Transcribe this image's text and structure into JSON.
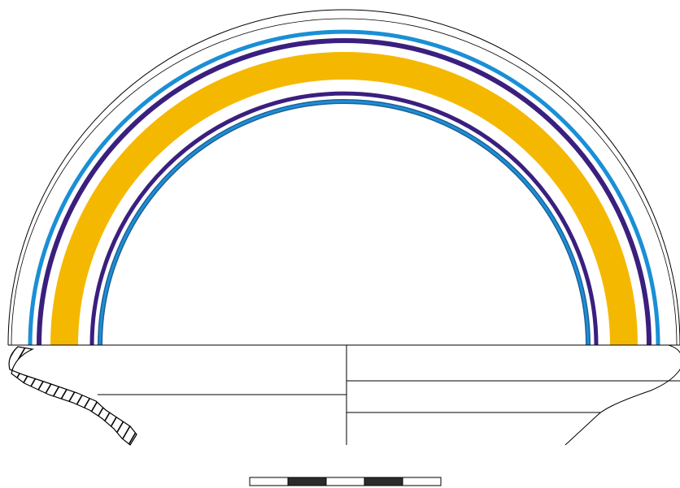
{
  "colors": {
    "outline": "#000000",
    "band_light_blue": "#1a8fd6",
    "band_purple": "#3a1f7e",
    "band_yellow": "#f5b800",
    "band_dark_blue": "#1f5f95",
    "scale_dark": "#2b2b2b",
    "scale_light": "#ffffff"
  },
  "drawing": {
    "subject": "vessel-profile-with-painted-bands",
    "bands": [
      "light-blue",
      "purple",
      "yellow",
      "purple",
      "light-blue"
    ],
    "section_hatch": "diagonal",
    "scale_bar_segments": 5
  }
}
